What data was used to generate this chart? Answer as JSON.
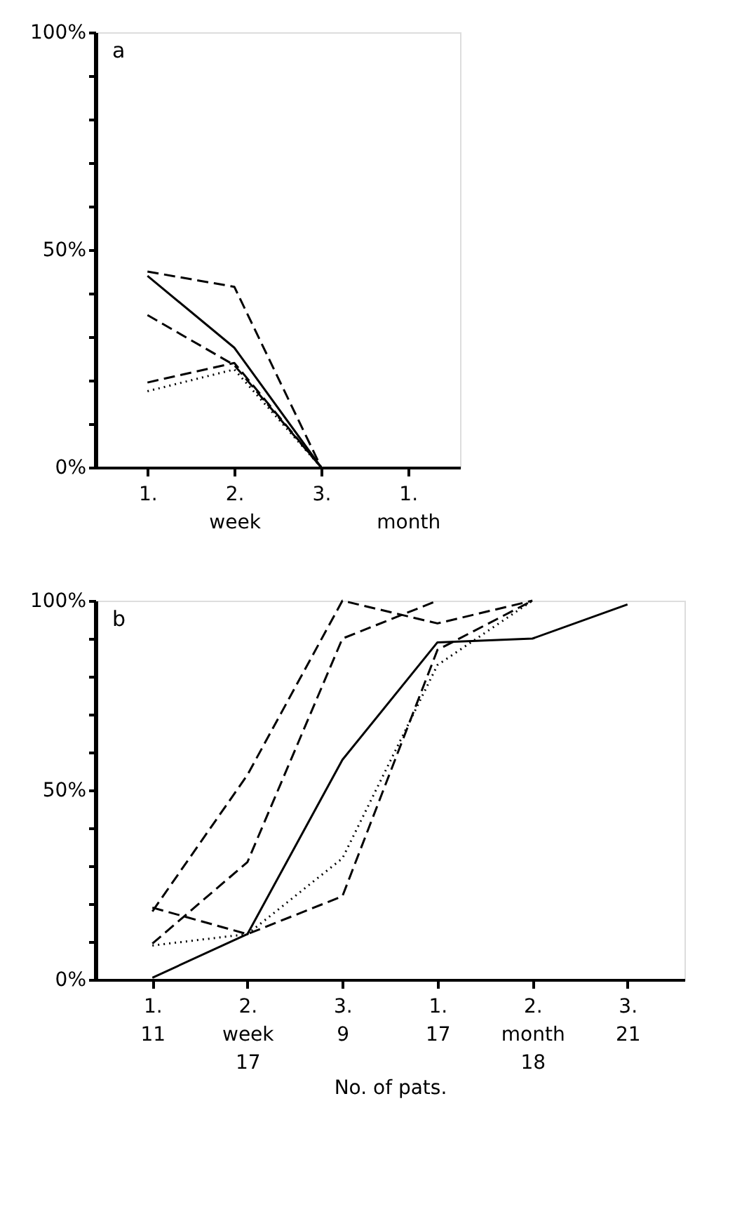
{
  "chart_data": [
    {
      "type": "line",
      "title": "a",
      "categories": [
        "1.",
        "2.\nweek",
        "3.",
        "1.\nmonth"
      ],
      "series": [
        {
          "color": "#000000",
          "line_style": "dashed",
          "values": [
            45,
            41.5,
            0,
            null
          ]
        },
        {
          "color": "#000000",
          "line_style": "solid",
          "values": [
            44,
            27.5,
            0,
            null
          ]
        },
        {
          "color": "#000000",
          "line_style": "dashed",
          "values": [
            35,
            23.5,
            0,
            null
          ]
        },
        {
          "color": "#000000",
          "line_style": "dashed",
          "values": [
            19.5,
            24,
            0,
            null
          ]
        },
        {
          "color": "#000000",
          "line_style": "dotted",
          "values": [
            17.5,
            22.5,
            0,
            null
          ]
        }
      ],
      "ylim": [
        0,
        100
      ],
      "yticks": [
        {
          "value": 0,
          "label": "0%"
        },
        {
          "value": 10,
          "label": null
        },
        {
          "value": 20,
          "label": null
        },
        {
          "value": 30,
          "label": null
        },
        {
          "value": 40,
          "label": null
        },
        {
          "value": 50,
          "label": "50%"
        },
        {
          "value": 60,
          "label": null
        },
        {
          "value": 70,
          "label": null
        },
        {
          "value": 80,
          "label": null
        },
        {
          "value": 90,
          "label": null
        },
        {
          "value": 100,
          "label": "100%"
        }
      ],
      "grid": false,
      "legend": false
    },
    {
      "type": "line",
      "title": "b",
      "xlabel": "No. of pats.",
      "categories": [
        "1.\n\n11",
        "2.\nweek\n17",
        "3.\n\n9",
        "1.\n\n17",
        "2.\nmonth\n18",
        "3.\n\n21"
      ],
      "series": [
        {
          "color": "#000000",
          "line_style": "solid",
          "values": [
            0.5,
            12,
            58,
            89,
            90,
            99
          ]
        },
        {
          "color": "#000000",
          "line_style": "dashed",
          "values": [
            18,
            54,
            100,
            94,
            100,
            null
          ]
        },
        {
          "color": "#000000",
          "line_style": "dashed",
          "values": [
            9.5,
            31,
            90,
            100,
            null,
            null
          ]
        },
        {
          "color": "#000000",
          "line_style": "dotted",
          "values": [
            9,
            12,
            32,
            83,
            100,
            null
          ]
        },
        {
          "color": "#000000",
          "line_style": "dashed",
          "values": [
            19,
            12,
            22,
            87,
            100,
            null
          ]
        }
      ],
      "ylim": [
        0,
        100
      ],
      "yticks": [
        {
          "value": 0,
          "label": "0%"
        },
        {
          "value": 10,
          "label": null
        },
        {
          "value": 20,
          "label": null
        },
        {
          "value": 30,
          "label": null
        },
        {
          "value": 40,
          "label": null
        },
        {
          "value": 50,
          "label": "50%"
        },
        {
          "value": 60,
          "label": null
        },
        {
          "value": 70,
          "label": null
        },
        {
          "value": 80,
          "label": null
        },
        {
          "value": 90,
          "label": null
        },
        {
          "value": 100,
          "label": "100%"
        }
      ],
      "grid": false,
      "legend": false
    }
  ]
}
